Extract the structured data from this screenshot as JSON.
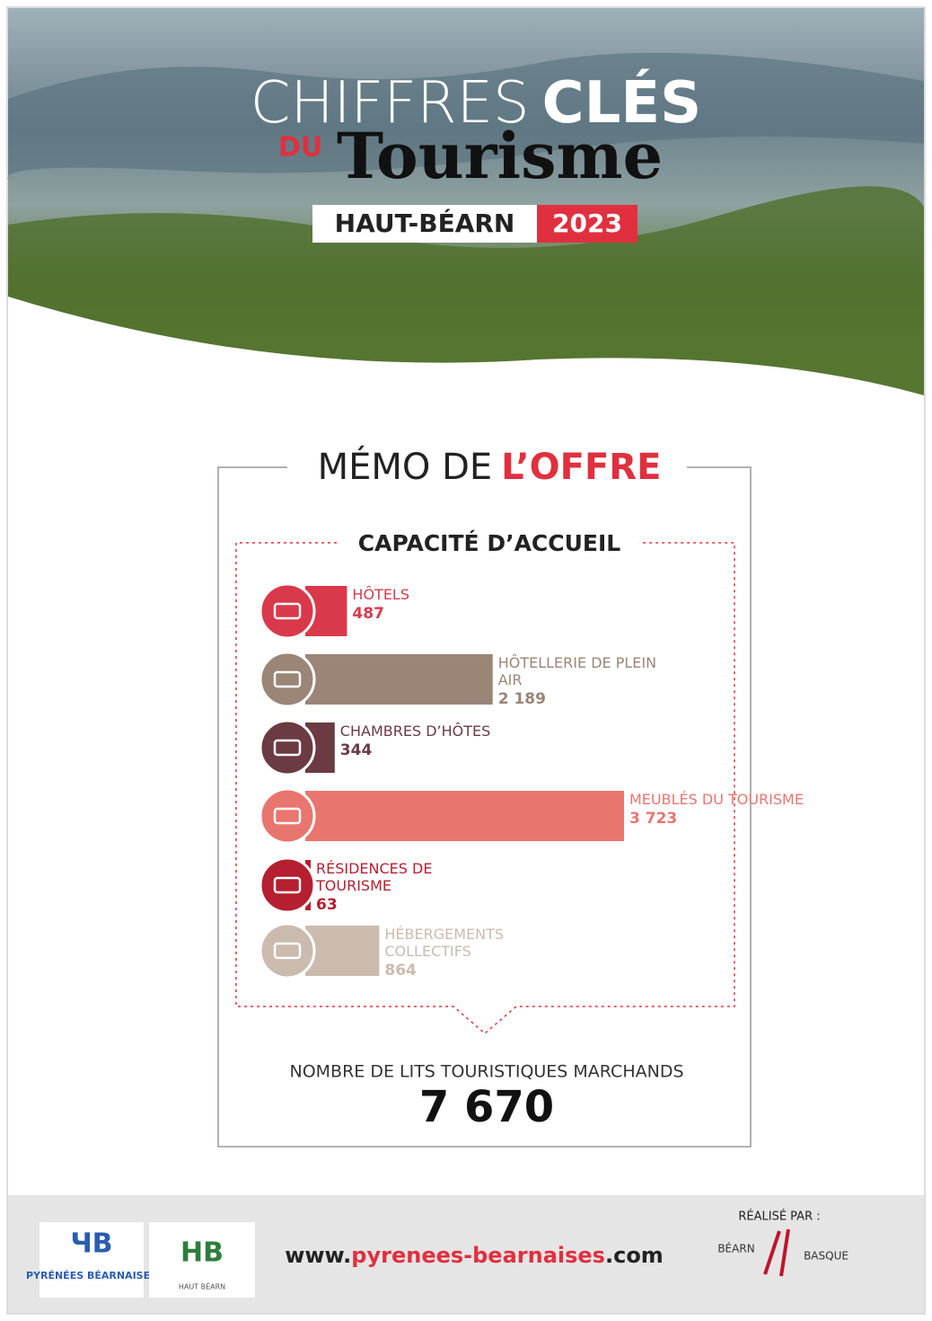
{
  "header": {
    "title_light": "CHIFFRES",
    "title_bold": "CLÉS",
    "du": "DU",
    "tourisme": "Tourisme",
    "area": "HAUT-BÉARN",
    "year": "2023"
  },
  "memo": {
    "title_light": "MÉMO DE",
    "title_bold": "L’OFFRE",
    "section": "CAPACITÉ D’ACCUEIL"
  },
  "chart_data": {
    "type": "bar",
    "orientation": "horizontal",
    "categories": [
      "HÔTELS",
      "HÔTELLERIE DE PLEIN AIR",
      "CHAMBRES D’HÔTES",
      "MEUBLÉS DU TOURISME",
      "RÉSIDENCES DE TOURISME",
      "HÉBERGEMENTS COLLECTIFS"
    ],
    "values": [
      487,
      2189,
      344,
      3723,
      63,
      864
    ],
    "value_labels": [
      "487",
      "2 189",
      "344",
      "3 723",
      "63",
      "864"
    ],
    "colors": [
      "#d9394b",
      "#9a8577",
      "#6b3a43",
      "#e8766f",
      "#b51f2f",
      "#cbbbae"
    ]
  },
  "total": {
    "label": "NOMBRE DE LITS TOURISTIQUES MARCHANDS",
    "value": "7 670"
  },
  "footer": {
    "url_start": "www.",
    "url_middle": "pyrenees-bearnaises",
    "url_end": ".com",
    "made_by": "RÉALISÉ PAR :",
    "logo1": "PYRÉNÉES BÉARNAISES",
    "logo2": "HAUT BÉARN",
    "partner_left": "BÉARN",
    "partner_right": "BASQUE"
  }
}
